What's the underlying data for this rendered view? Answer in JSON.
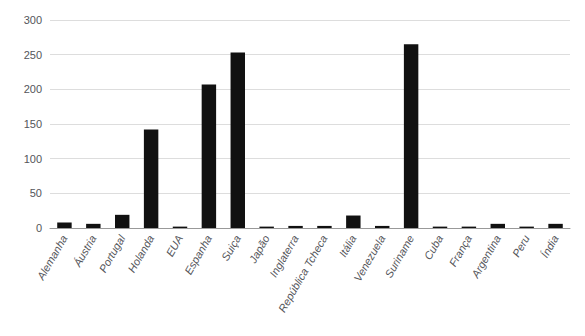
{
  "chart_data": {
    "type": "bar",
    "categories": [
      "Alemanha",
      "Áustria",
      "Portugal",
      "Holanda",
      "EUA",
      "Espanha",
      "Suiça",
      "Japão",
      "Inglaterra",
      "República Tcheca",
      "Itália",
      "Venezuela",
      "Suriname",
      "Cuba",
      "França",
      "Argentina",
      "Peru",
      "Índia"
    ],
    "values": [
      8,
      6,
      19,
      142,
      2,
      207,
      253,
      2,
      3,
      3,
      18,
      3,
      265,
      2,
      2,
      6,
      2,
      6
    ],
    "color": "#111111",
    "ylim": [
      0,
      300
    ],
    "yticks": [
      0,
      50,
      100,
      150,
      200,
      250,
      300
    ],
    "grid": true
  }
}
